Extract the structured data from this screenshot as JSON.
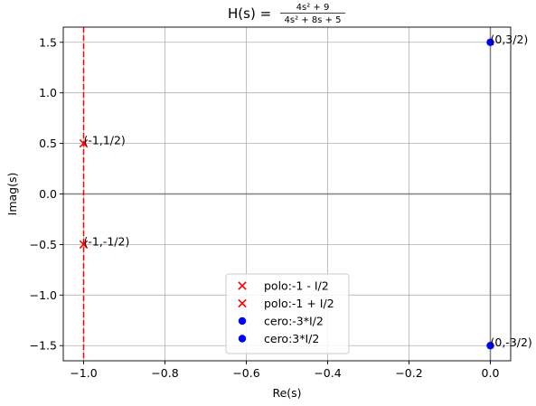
{
  "chart_data": {
    "type": "scatter",
    "title": {
      "prefix": "H(s) = ",
      "numerator": "4s² + 9",
      "denominator": "4s² + 8s + 5"
    },
    "xlabel": "Re(s)",
    "ylabel": "Imag(s)",
    "xlim": [
      -1.05,
      0.05
    ],
    "ylim": [
      -1.65,
      1.65
    ],
    "xticks": [
      -1.0,
      -0.8,
      -0.6,
      -0.4,
      -0.2,
      0.0
    ],
    "xtick_labels": [
      "−1.0",
      "−0.8",
      "−0.6",
      "−0.4",
      "−0.2",
      "0.0"
    ],
    "yticks": [
      -1.5,
      -1.0,
      -0.5,
      0.0,
      0.5,
      1.0,
      1.5
    ],
    "ytick_labels": [
      "−1.5",
      "−1.0",
      "−0.5",
      "0.0",
      "0.5",
      "1.0",
      "1.5"
    ],
    "grid": true,
    "legend_position": "lower-center",
    "vertical_line": {
      "x": -1.0,
      "color": "#ff0000",
      "style": "dashed"
    },
    "series": [
      {
        "name": "polo:-1 - I/2",
        "marker": "x",
        "color": "#ff0000",
        "points": [
          {
            "x": -1.0,
            "y": -0.5
          }
        ]
      },
      {
        "name": "polo:-1 + I/2",
        "marker": "x",
        "color": "#ff0000",
        "points": [
          {
            "x": -1.0,
            "y": 0.5
          }
        ]
      },
      {
        "name": "cero:-3*I/2",
        "marker": "o",
        "color": "#0000ff",
        "points": [
          {
            "x": 0.0,
            "y": -1.5
          }
        ]
      },
      {
        "name": "cero:3*I/2",
        "marker": "o",
        "color": "#0000ff",
        "points": [
          {
            "x": 0.0,
            "y": 1.5
          }
        ]
      }
    ],
    "annotations": [
      {
        "text": "(-1,1/2)",
        "x": -1.0,
        "y": 0.5
      },
      {
        "text": "(-1,-1/2)",
        "x": -1.0,
        "y": -0.5
      },
      {
        "text": "(0,3/2)",
        "x": 0.0,
        "y": 1.5
      },
      {
        "text": "(0,-3/2)",
        "x": 0.0,
        "y": -1.5
      }
    ],
    "colors": {
      "grid": "#b0b0b0",
      "zero_axes": "#808080",
      "frame": "#000000"
    }
  }
}
